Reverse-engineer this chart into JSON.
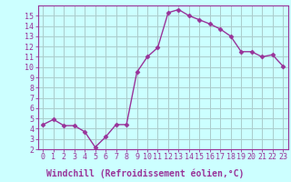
{
  "x": [
    0,
    1,
    2,
    3,
    4,
    5,
    6,
    7,
    8,
    9,
    10,
    11,
    12,
    13,
    14,
    15,
    16,
    17,
    18,
    19,
    20,
    21,
    22,
    23
  ],
  "y": [
    4.4,
    4.9,
    4.3,
    4.3,
    3.7,
    2.2,
    3.2,
    4.4,
    4.4,
    9.5,
    11.0,
    11.9,
    15.3,
    15.6,
    15.0,
    14.6,
    14.2,
    13.7,
    13.0,
    11.5,
    11.5,
    11.0,
    11.2,
    10.1
  ],
  "line_color": "#993399",
  "marker": "D",
  "marker_size": 2.5,
  "bg_color": "#ccffff",
  "grid_color": "#aacccc",
  "axis_color": "#993399",
  "xlabel": "Windchill (Refroidissement éolien,°C)",
  "xlim": [
    -0.5,
    23.5
  ],
  "ylim": [
    2,
    16
  ],
  "yticks": [
    2,
    3,
    4,
    5,
    6,
    7,
    8,
    9,
    10,
    11,
    12,
    13,
    14,
    15
  ],
  "xticks": [
    0,
    1,
    2,
    3,
    4,
    5,
    6,
    7,
    8,
    9,
    10,
    11,
    12,
    13,
    14,
    15,
    16,
    17,
    18,
    19,
    20,
    21,
    22,
    23
  ],
  "xtick_labels": [
    "0",
    "1",
    "2",
    "3",
    "4",
    "5",
    "6",
    "7",
    "8",
    "9",
    "10",
    "11",
    "12",
    "13",
    "14",
    "15",
    "16",
    "17",
    "18",
    "19",
    "20",
    "21",
    "22",
    "23"
  ],
  "tick_label_color": "#993399",
  "xlabel_text_color": "#993399",
  "font_size_xlabel": 7,
  "font_size_ticks": 6
}
